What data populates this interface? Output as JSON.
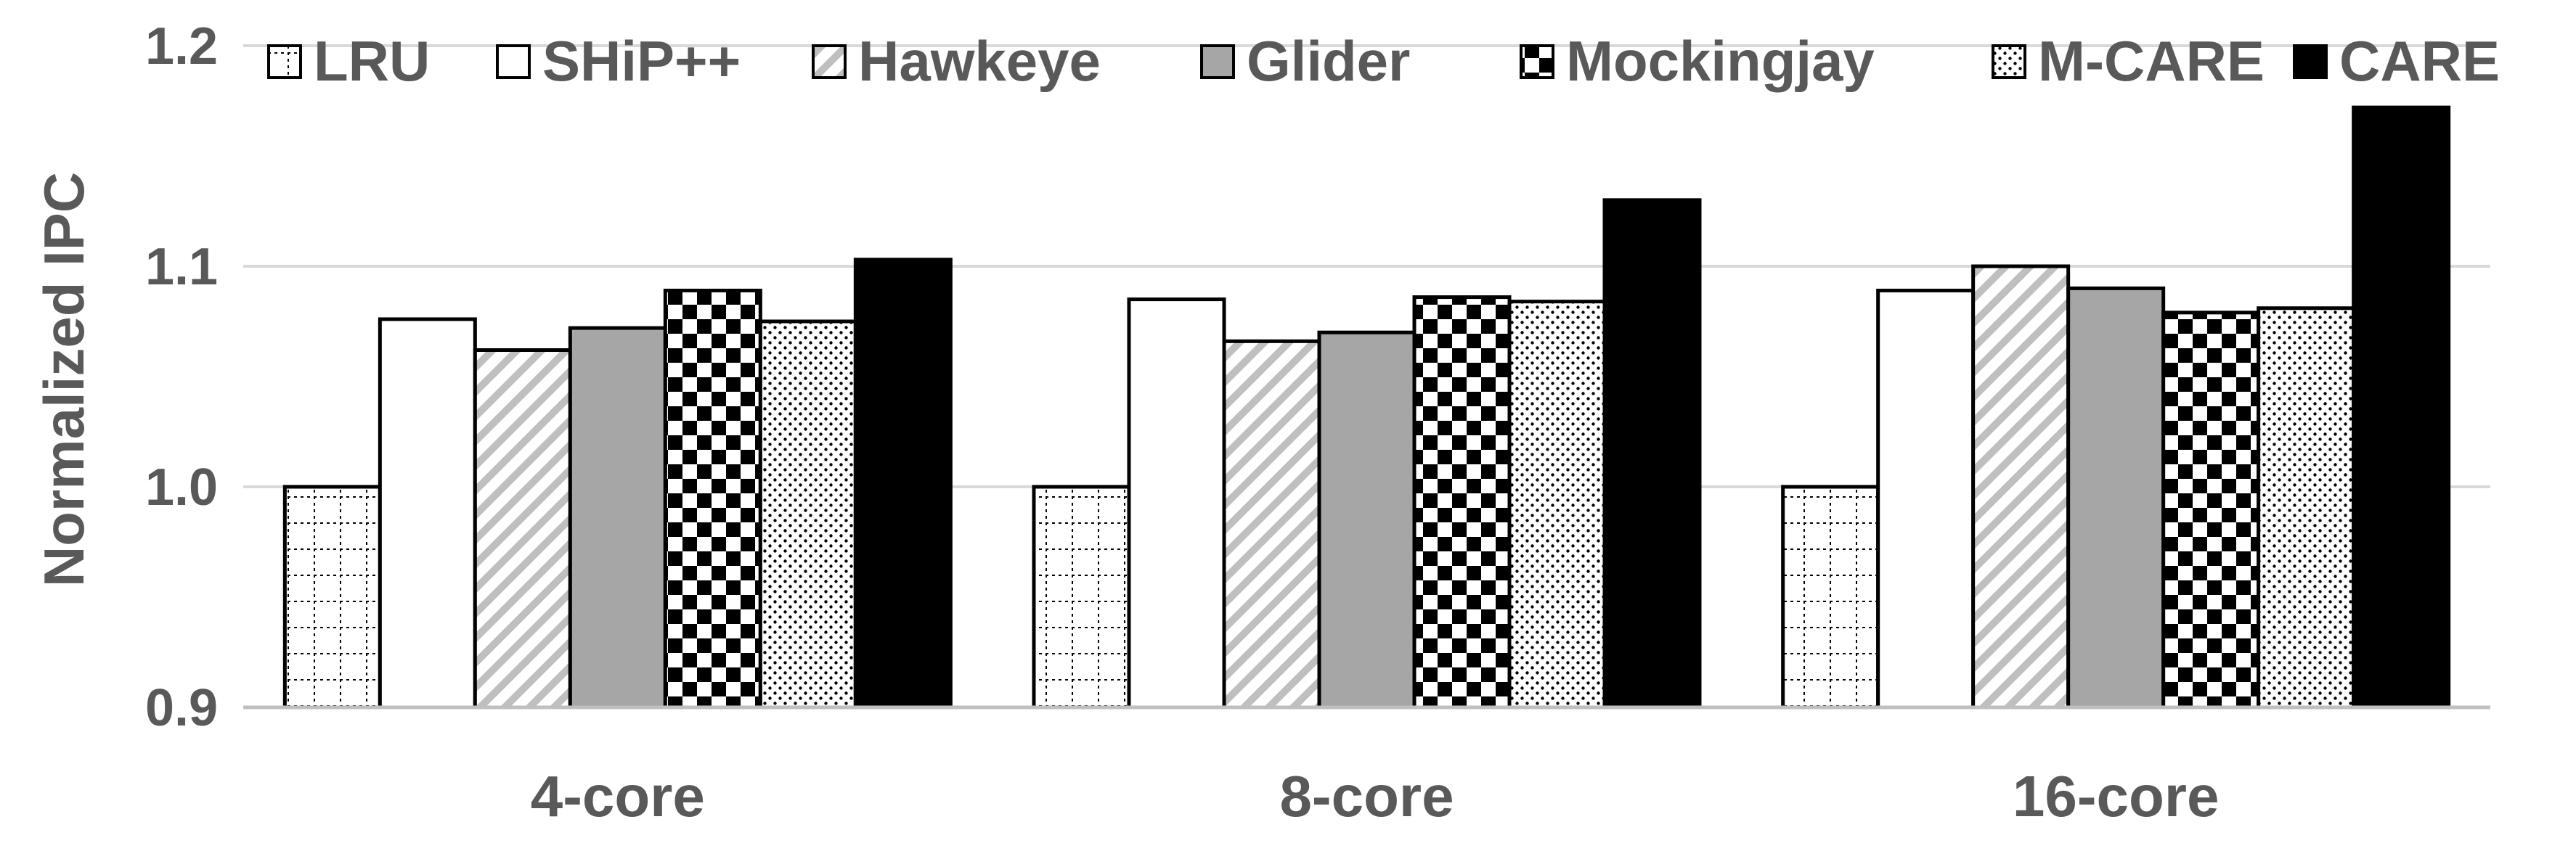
{
  "chart_data": {
    "type": "bar",
    "title": "",
    "xlabel": "",
    "ylabel": "Normalized IPC",
    "ylim": [
      0.9,
      1.2
    ],
    "yticks": [
      "0.9",
      "1.0",
      "1.1",
      "1.2"
    ],
    "grid": true,
    "legend_position": "top",
    "categories": [
      "4-core",
      "8-core",
      "16-core"
    ],
    "series": [
      {
        "name": "LRU",
        "pattern": "grid-dotted",
        "values": [
          1.0,
          1.0,
          1.0
        ]
      },
      {
        "name": "SHiP++",
        "pattern": "solid-white",
        "values": [
          1.076,
          1.085,
          1.089
        ]
      },
      {
        "name": "Hawkeye",
        "pattern": "diagonal-stripes",
        "values": [
          1.062,
          1.066,
          1.1
        ]
      },
      {
        "name": "Glider",
        "pattern": "solid-gray",
        "values": [
          1.072,
          1.07,
          1.09
        ]
      },
      {
        "name": "Mockingjay",
        "pattern": "checkerboard",
        "values": [
          1.089,
          1.086,
          1.079
        ]
      },
      {
        "name": "M-CARE",
        "pattern": "dots",
        "values": [
          1.075,
          1.084,
          1.081
        ]
      },
      {
        "name": "CARE",
        "pattern": "solid-black",
        "values": [
          1.103,
          1.13,
          1.172
        ]
      }
    ],
    "colors": {
      "gray_fill": "#a6a6a6",
      "black_fill": "#000000",
      "stripe": "#bfbfbf",
      "text": "#595959"
    }
  }
}
